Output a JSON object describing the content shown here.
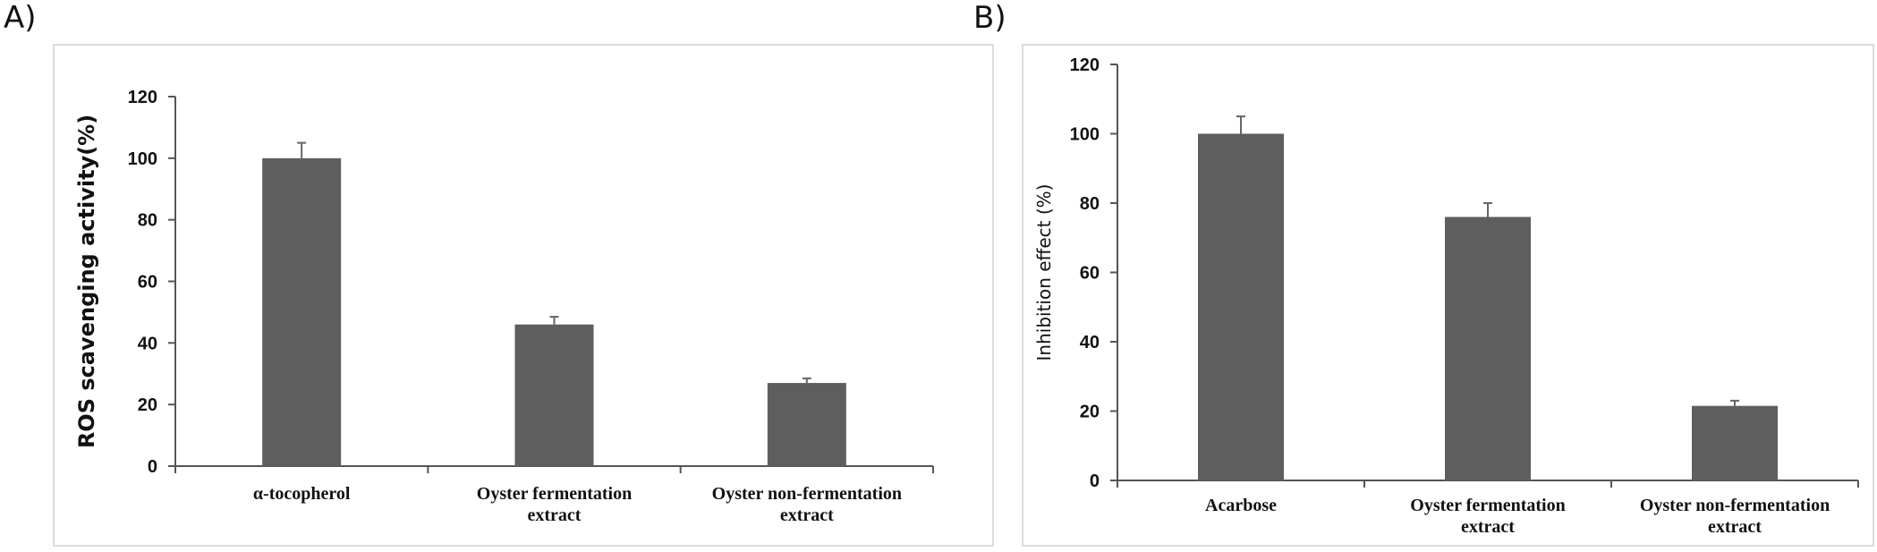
{
  "panels": {
    "a_label": "A)",
    "b_label": "B)"
  },
  "chart_data": [
    {
      "type": "bar",
      "panel": "A)",
      "title": "",
      "xlabel": "",
      "ylabel": "ROS scavenging activity(%)",
      "categories": [
        [
          "α-tocopherol"
        ],
        [
          "Oyster fermentation",
          "extract"
        ],
        [
          "Oyster non-fermentation",
          "extract"
        ]
      ],
      "values": [
        100,
        46,
        27
      ],
      "errors": [
        5,
        2.5,
        1.5
      ],
      "ylim": [
        0,
        120
      ],
      "yticks": [
        0,
        20,
        40,
        60,
        80,
        100,
        120
      ],
      "grid": false
    },
    {
      "type": "bar",
      "panel": "B)",
      "title": "",
      "xlabel": "",
      "ylabel": "Inhibition effect (%)",
      "categories": [
        [
          "Acarbose"
        ],
        [
          "Oyster fermentation",
          "extract"
        ],
        [
          "Oyster non-fermentation",
          "extract"
        ]
      ],
      "values": [
        100,
        76,
        21.5
      ],
      "errors": [
        5,
        4,
        1.5
      ],
      "ylim": [
        0,
        120
      ],
      "yticks": [
        0,
        20,
        40,
        60,
        80,
        100,
        120
      ],
      "grid": false
    }
  ]
}
